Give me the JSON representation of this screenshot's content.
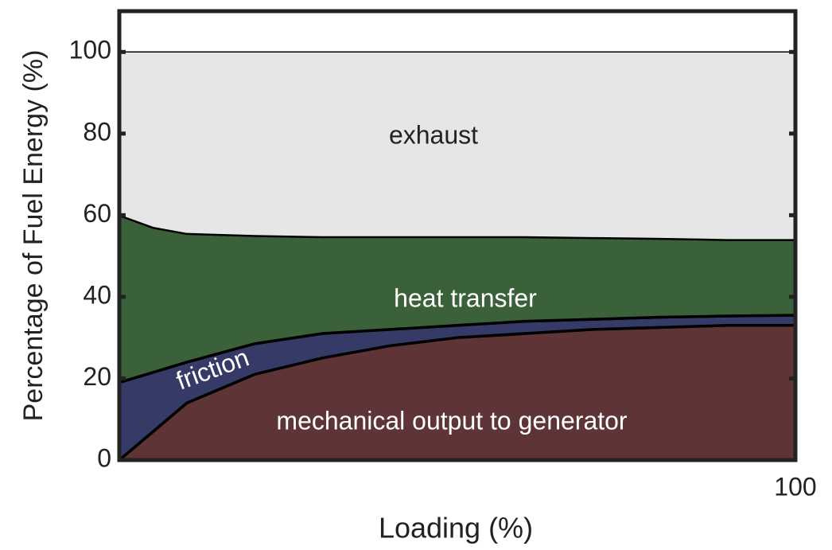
{
  "chart_data": {
    "type": "stacked_area",
    "xlabel": "Loading (%)",
    "ylabel": "Percentage of Fuel Energy (%)",
    "x": [
      0,
      5,
      10,
      20,
      30,
      40,
      50,
      60,
      70,
      80,
      90,
      100
    ],
    "xlim": [
      0,
      100
    ],
    "xticks": [
      100
    ],
    "ylim": [
      0,
      110
    ],
    "yticks": [
      0,
      20,
      40,
      60,
      80,
      100
    ],
    "series": [
      {
        "name": "mechanical output to generator",
        "color": "#5e3436",
        "values": [
          0,
          7,
          14,
          21,
          25,
          28,
          30,
          31,
          32,
          32.5,
          33,
          33
        ]
      },
      {
        "name": "friction",
        "color": "#363a66",
        "values": [
          19,
          14.5,
          10,
          7.5,
          6,
          4,
          3,
          3,
          2.5,
          2.5,
          2.3,
          2.5
        ]
      },
      {
        "name": "heat transfer",
        "color": "#3a613a",
        "values": [
          41,
          35.5,
          31.5,
          26.5,
          23.7,
          22.7,
          21.7,
          20.7,
          20,
          19.3,
          18.7,
          18.5
        ]
      },
      {
        "name": "exhaust",
        "color": "#e6e6e6",
        "values": [
          40,
          43,
          44.5,
          45,
          45.3,
          45.3,
          45.3,
          45.3,
          45.5,
          45.7,
          46,
          46
        ]
      }
    ]
  }
}
